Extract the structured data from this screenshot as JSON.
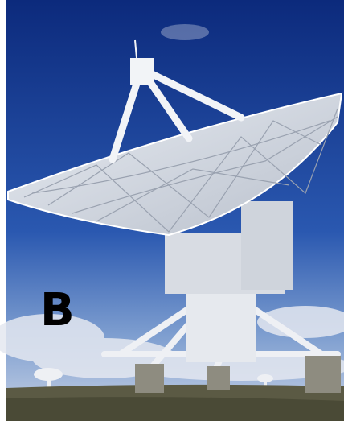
{
  "image": {
    "label": "B"
  }
}
